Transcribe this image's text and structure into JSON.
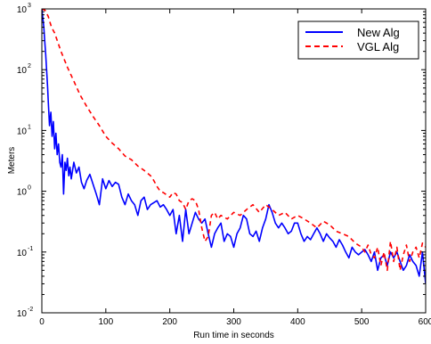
{
  "chart_data": {
    "type": "line",
    "xlabel": "Run time in seconds",
    "ylabel": "Meters",
    "xlim": [
      0,
      600
    ],
    "ylim": [
      0.01,
      1000
    ],
    "yscale": "log",
    "grid": false,
    "legend_position": "top-right",
    "x_ticks": [
      "0",
      "100",
      "200",
      "300",
      "400",
      "500",
      "600"
    ],
    "y_ticks": [
      {
        "base": "10",
        "exp": "-2",
        "value": 0.01
      },
      {
        "base": "10",
        "exp": "-1",
        "value": 0.1
      },
      {
        "base": "10",
        "exp": "0",
        "value": 1
      },
      {
        "base": "10",
        "exp": "1",
        "value": 10
      },
      {
        "base": "10",
        "exp": "2",
        "value": 100
      },
      {
        "base": "10",
        "exp": "3",
        "value": 1000
      }
    ],
    "series": [
      {
        "name": "New Alg",
        "color": "#0000ff",
        "style": "solid",
        "x": [
          0,
          1,
          2,
          3,
          4,
          5,
          6,
          7,
          8,
          9,
          10,
          12,
          14,
          16,
          18,
          20,
          22,
          24,
          26,
          28,
          30,
          32,
          34,
          36,
          38,
          40,
          42,
          44,
          46,
          48,
          50,
          54,
          58,
          62,
          66,
          70,
          75,
          80,
          85,
          90,
          95,
          100,
          105,
          110,
          115,
          120,
          125,
          130,
          135,
          140,
          145,
          150,
          155,
          160,
          165,
          170,
          175,
          180,
          185,
          190,
          195,
          200,
          205,
          210,
          215,
          220,
          225,
          230,
          235,
          240,
          245,
          250,
          255,
          260,
          265,
          270,
          275,
          280,
          285,
          290,
          295,
          300,
          305,
          310,
          315,
          320,
          325,
          330,
          335,
          340,
          345,
          350,
          355,
          360,
          365,
          370,
          375,
          380,
          385,
          390,
          395,
          400,
          405,
          410,
          415,
          420,
          425,
          430,
          435,
          440,
          445,
          450,
          455,
          460,
          465,
          470,
          475,
          480,
          485,
          490,
          495,
          500,
          505,
          510,
          515,
          520,
          525,
          530,
          535,
          540,
          545,
          550,
          555,
          560,
          565,
          570,
          575,
          580,
          585,
          590,
          595,
          600
        ],
        "values": [
          1000,
          800,
          650,
          500,
          350,
          250,
          180,
          120,
          80,
          50,
          30,
          12,
          20,
          8,
          14,
          5,
          9,
          4,
          6,
          3,
          2.5,
          4,
          0.9,
          3,
          2.2,
          3.5,
          1.8,
          2.5,
          1.6,
          2.2,
          3,
          2,
          2.5,
          1.4,
          1.1,
          1.5,
          1.9,
          1.3,
          0.9,
          0.6,
          1.6,
          1.1,
          1.5,
          1.2,
          1.4,
          1.3,
          0.8,
          0.6,
          0.9,
          0.7,
          0.6,
          0.4,
          0.7,
          0.8,
          0.5,
          0.6,
          0.65,
          0.7,
          0.55,
          0.6,
          0.5,
          0.4,
          0.5,
          0.2,
          0.4,
          0.15,
          0.5,
          0.2,
          0.3,
          0.45,
          0.35,
          0.3,
          0.35,
          0.2,
          0.12,
          0.2,
          0.25,
          0.3,
          0.15,
          0.2,
          0.18,
          0.12,
          0.2,
          0.25,
          0.4,
          0.35,
          0.2,
          0.18,
          0.22,
          0.15,
          0.25,
          0.35,
          0.6,
          0.45,
          0.3,
          0.25,
          0.3,
          0.25,
          0.2,
          0.22,
          0.3,
          0.3,
          0.2,
          0.15,
          0.18,
          0.16,
          0.2,
          0.25,
          0.2,
          0.15,
          0.2,
          0.17,
          0.15,
          0.12,
          0.16,
          0.13,
          0.1,
          0.08,
          0.12,
          0.1,
          0.09,
          0.1,
          0.11,
          0.09,
          0.07,
          0.1,
          0.05,
          0.08,
          0.09,
          0.06,
          0.1,
          0.08,
          0.1,
          0.07,
          0.05,
          0.06,
          0.09,
          0.07,
          0.06,
          0.04,
          0.1,
          0.03
        ]
      },
      {
        "name": "VGL Alg",
        "color": "#ff0000",
        "style": "dashed",
        "x": [
          0,
          5,
          10,
          15,
          20,
          25,
          30,
          40,
          50,
          60,
          70,
          80,
          90,
          100,
          110,
          120,
          130,
          140,
          150,
          160,
          170,
          175,
          180,
          185,
          190,
          200,
          205,
          210,
          215,
          220,
          225,
          230,
          235,
          240,
          245,
          250,
          255,
          260,
          265,
          270,
          275,
          280,
          290,
          300,
          310,
          320,
          330,
          340,
          350,
          360,
          370,
          380,
          390,
          400,
          410,
          420,
          430,
          440,
          450,
          460,
          470,
          480,
          490,
          500,
          505,
          510,
          515,
          520,
          525,
          530,
          535,
          540,
          545,
          550,
          555,
          560,
          565,
          570,
          575,
          580,
          585,
          590,
          595,
          600
        ],
        "values": [
          1000,
          950,
          750,
          500,
          400,
          280,
          200,
          110,
          65,
          38,
          25,
          17,
          12,
          8,
          6.2,
          5,
          3.8,
          3.3,
          2.6,
          2.2,
          1.8,
          1.5,
          1.2,
          1.0,
          0.95,
          0.8,
          0.95,
          0.9,
          0.7,
          0.65,
          0.5,
          0.7,
          0.75,
          0.7,
          0.5,
          0.25,
          0.15,
          0.18,
          0.4,
          0.45,
          0.35,
          0.4,
          0.35,
          0.45,
          0.4,
          0.5,
          0.6,
          0.45,
          0.6,
          0.5,
          0.4,
          0.45,
          0.35,
          0.4,
          0.35,
          0.3,
          0.25,
          0.32,
          0.28,
          0.22,
          0.2,
          0.18,
          0.14,
          0.12,
          0.1,
          0.13,
          0.09,
          0.08,
          0.12,
          0.06,
          0.1,
          0.05,
          0.15,
          0.07,
          0.12,
          0.05,
          0.09,
          0.13,
          0.07,
          0.1,
          0.12,
          0.08,
          0.14,
          0.12
        ]
      }
    ]
  }
}
